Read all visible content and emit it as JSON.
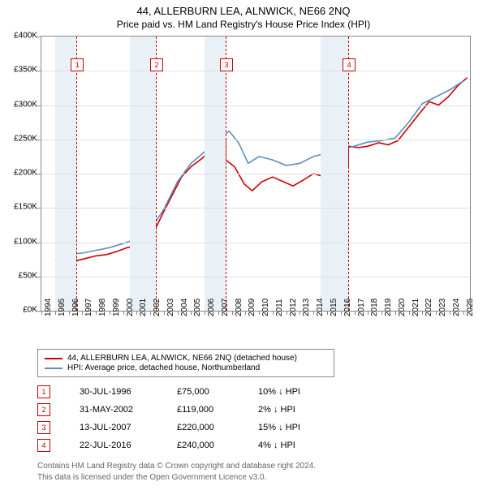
{
  "title": "44, ALLERBURN LEA, ALNWICK, NE66 2NQ",
  "subtitle": "Price paid vs. HM Land Registry's House Price Index (HPI)",
  "chart": {
    "type": "line",
    "background_color": "#ffffff",
    "grid_color": "#e0e0e0",
    "axis_color": "#888888",
    "x_range": [
      1994,
      2025.5
    ],
    "y_range": [
      0,
      400000
    ],
    "y_ticks": [
      0,
      50000,
      100000,
      150000,
      200000,
      250000,
      300000,
      350000,
      400000
    ],
    "y_tick_labels": [
      "£0K",
      "£50K",
      "£100K",
      "£150K",
      "£200K",
      "£250K",
      "£300K",
      "£350K",
      "£400K"
    ],
    "x_ticks": [
      1994,
      1995,
      1996,
      1997,
      1998,
      1999,
      2000,
      2001,
      2002,
      2003,
      2004,
      2005,
      2006,
      2007,
      2008,
      2009,
      2010,
      2011,
      2012,
      2013,
      2014,
      2015,
      2016,
      2017,
      2018,
      2019,
      2020,
      2021,
      2022,
      2023,
      2024,
      2025
    ],
    "label_fontsize": 10,
    "line_width": 1.6,
    "shaded_bands": [
      {
        "from": 1995.0,
        "to": 1996.58
      },
      {
        "from": 2000.5,
        "to": 2002.41
      },
      {
        "from": 2006.0,
        "to": 2007.54
      },
      {
        "from": 2014.5,
        "to": 2016.56
      }
    ],
    "shade_color": "#e9f1f7",
    "sale_markers": [
      {
        "label": "1",
        "year": 1996.58,
        "price": 75000
      },
      {
        "label": "2",
        "year": 2002.41,
        "price": 119000
      },
      {
        "label": "3",
        "year": 2007.54,
        "price": 220000
      },
      {
        "label": "4",
        "year": 2016.56,
        "price": 240000
      }
    ],
    "marker_y": 360000,
    "dashed_color": "#cc0000",
    "series": [
      {
        "name": "price_paid",
        "color": "#cc0000",
        "data": [
          [
            1995.0,
            75000
          ],
          [
            1996.58,
            75000
          ],
          [
            1996.58,
            73000
          ],
          [
            1997.2,
            76000
          ],
          [
            1998.0,
            80000
          ],
          [
            1998.8,
            82000
          ],
          [
            1999.5,
            86000
          ],
          [
            2000.3,
            92000
          ],
          [
            2001.0,
            95000
          ],
          [
            2001.7,
            108000
          ],
          [
            2002.41,
            119000
          ],
          [
            2002.41,
            121000
          ],
          [
            2003.0,
            145000
          ],
          [
            2003.7,
            172000
          ],
          [
            2004.3,
            195000
          ],
          [
            2005.0,
            210000
          ],
          [
            2005.8,
            222000
          ],
          [
            2006.5,
            235000
          ],
          [
            2007.2,
            244000
          ],
          [
            2007.54,
            248000
          ],
          [
            2007.54,
            220000
          ],
          [
            2008.2,
            210000
          ],
          [
            2008.9,
            185000
          ],
          [
            2009.5,
            175000
          ],
          [
            2010.2,
            188000
          ],
          [
            2011.0,
            195000
          ],
          [
            2011.8,
            188000
          ],
          [
            2012.5,
            182000
          ],
          [
            2013.2,
            190000
          ],
          [
            2014.0,
            200000
          ],
          [
            2014.7,
            196000
          ],
          [
            2015.5,
            200000
          ],
          [
            2016.2,
            208000
          ],
          [
            2016.56,
            210000
          ],
          [
            2016.56,
            240000
          ],
          [
            2017.3,
            238000
          ],
          [
            2018.0,
            240000
          ],
          [
            2018.8,
            245000
          ],
          [
            2019.5,
            242000
          ],
          [
            2020.2,
            248000
          ],
          [
            2021.0,
            268000
          ],
          [
            2021.8,
            288000
          ],
          [
            2022.5,
            305000
          ],
          [
            2023.2,
            300000
          ],
          [
            2023.9,
            312000
          ],
          [
            2024.6,
            328000
          ],
          [
            2025.3,
            340000
          ]
        ]
      },
      {
        "name": "hpi",
        "color": "#5b8fbf",
        "data": [
          [
            1995.0,
            82000
          ],
          [
            1996.0,
            82000
          ],
          [
            1997.0,
            84000
          ],
          [
            1998.0,
            88000
          ],
          [
            1999.0,
            92000
          ],
          [
            2000.0,
            98000
          ],
          [
            2001.0,
            105000
          ],
          [
            2002.0,
            118000
          ],
          [
            2003.0,
            148000
          ],
          [
            2004.0,
            188000
          ],
          [
            2005.0,
            215000
          ],
          [
            2006.0,
            232000
          ],
          [
            2007.0,
            250000
          ],
          [
            2007.8,
            262000
          ],
          [
            2008.5,
            245000
          ],
          [
            2009.2,
            215000
          ],
          [
            2010.0,
            225000
          ],
          [
            2011.0,
            220000
          ],
          [
            2012.0,
            212000
          ],
          [
            2013.0,
            215000
          ],
          [
            2014.0,
            225000
          ],
          [
            2015.0,
            230000
          ],
          [
            2016.0,
            235000
          ],
          [
            2017.0,
            240000
          ],
          [
            2018.0,
            246000
          ],
          [
            2019.0,
            248000
          ],
          [
            2020.0,
            252000
          ],
          [
            2021.0,
            275000
          ],
          [
            2022.0,
            302000
          ],
          [
            2023.0,
            312000
          ],
          [
            2024.0,
            322000
          ],
          [
            2025.0,
            335000
          ]
        ]
      }
    ]
  },
  "legend": {
    "items": [
      {
        "color": "#cc0000",
        "label": "44, ALLERBURN LEA, ALNWICK, NE66 2NQ (detached house)"
      },
      {
        "color": "#5b8fbf",
        "label": "HPI: Average price, detached house, Northumberland"
      }
    ]
  },
  "sales_table": {
    "rows": [
      {
        "marker": "1",
        "date": "30-JUL-1996",
        "price": "£75,000",
        "delta": "10% ↓ HPI"
      },
      {
        "marker": "2",
        "date": "31-MAY-2002",
        "price": "£119,000",
        "delta": "2% ↓ HPI"
      },
      {
        "marker": "3",
        "date": "13-JUL-2007",
        "price": "£220,000",
        "delta": "15% ↓ HPI"
      },
      {
        "marker": "4",
        "date": "22-JUL-2016",
        "price": "£240,000",
        "delta": "4% ↓ HPI"
      }
    ]
  },
  "footer": {
    "line1": "Contains HM Land Registry data © Crown copyright and database right 2024.",
    "line2": "This data is licensed under the Open Government Licence v3.0."
  }
}
